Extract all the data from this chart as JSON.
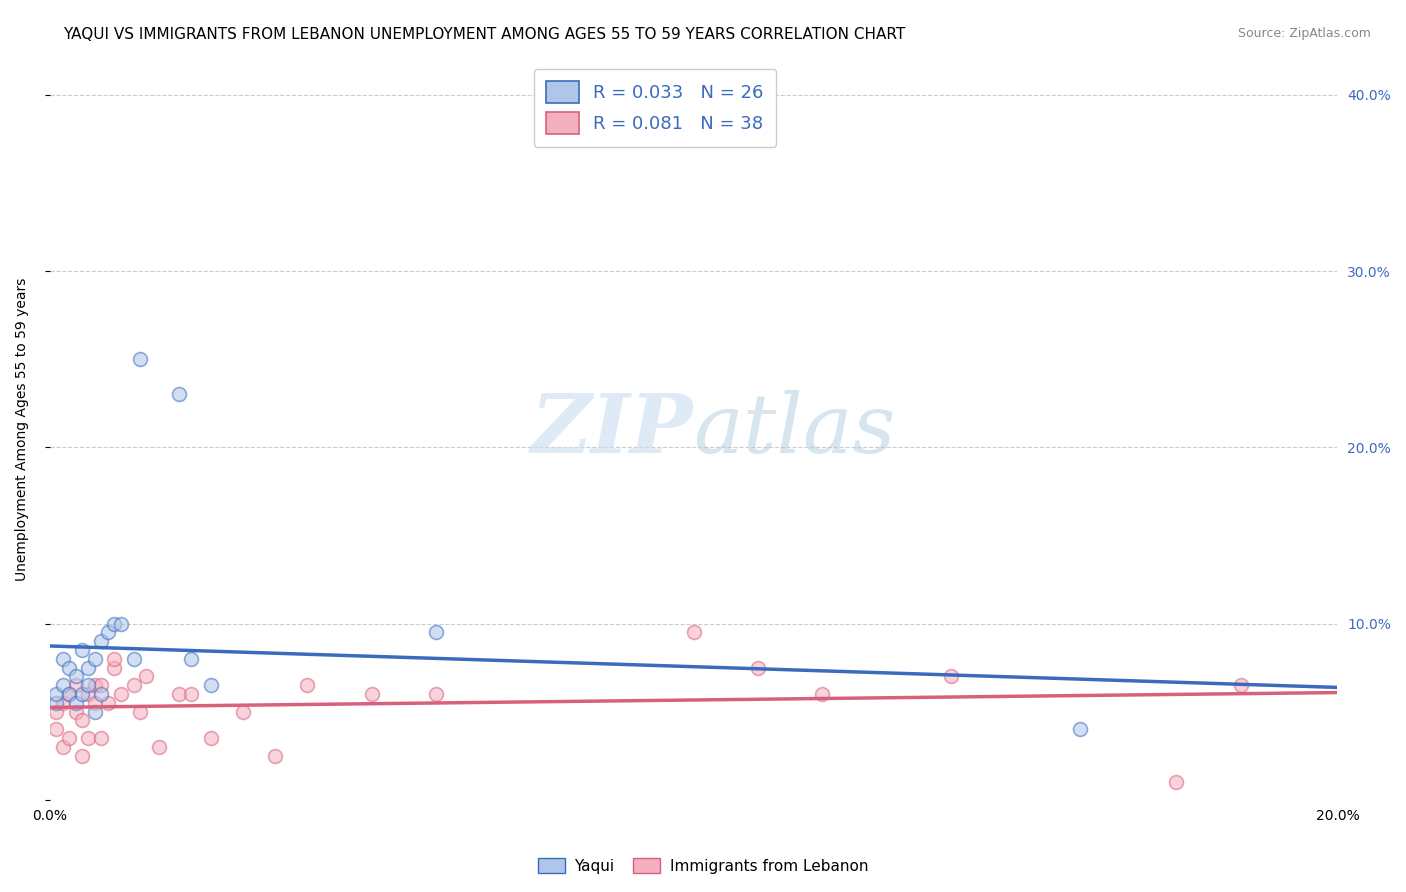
{
  "title": "YAQUI VS IMMIGRANTS FROM LEBANON UNEMPLOYMENT AMONG AGES 55 TO 59 YEARS CORRELATION CHART",
  "source": "Source: ZipAtlas.com",
  "ylabel": "Unemployment Among Ages 55 to 59 years",
  "xlim": [
    0.0,
    0.2
  ],
  "ylim": [
    0.0,
    0.42
  ],
  "xticks": [
    0.0,
    0.02,
    0.04,
    0.06,
    0.08,
    0.1,
    0.12,
    0.14,
    0.16,
    0.18,
    0.2
  ],
  "yticks_right": [
    0.0,
    0.1,
    0.2,
    0.3,
    0.4
  ],
  "yticklabels_right": [
    "",
    "10.0%",
    "20.0%",
    "30.0%",
    "40.0%"
  ],
  "legend1_label": "R = 0.033   N = 26",
  "legend2_label": "R = 0.081   N = 38",
  "legend1_fill": "#aec6e8",
  "legend2_fill": "#f4afc0",
  "trendline1_color": "#3a6bbf",
  "trendline2_color": "#d9607a",
  "watermark_zip": "ZIP",
  "watermark_atlas": "atlas",
  "background_color": "#ffffff",
  "grid_color": "#cccccc",
  "title_fontsize": 11,
  "tick_fontsize": 10,
  "axis_label_fontsize": 10,
  "yaqui_x": [
    0.001,
    0.001,
    0.002,
    0.002,
    0.003,
    0.003,
    0.004,
    0.004,
    0.005,
    0.005,
    0.006,
    0.006,
    0.007,
    0.007,
    0.008,
    0.008,
    0.009,
    0.01,
    0.011,
    0.013,
    0.014,
    0.02,
    0.022,
    0.025,
    0.06,
    0.16
  ],
  "yaqui_y": [
    0.055,
    0.06,
    0.08,
    0.065,
    0.075,
    0.06,
    0.07,
    0.055,
    0.085,
    0.06,
    0.075,
    0.065,
    0.08,
    0.05,
    0.09,
    0.06,
    0.095,
    0.1,
    0.1,
    0.08,
    0.25,
    0.23,
    0.08,
    0.065,
    0.095,
    0.04
  ],
  "lebanon_x": [
    0.001,
    0.001,
    0.002,
    0.002,
    0.003,
    0.003,
    0.004,
    0.004,
    0.005,
    0.005,
    0.006,
    0.006,
    0.007,
    0.007,
    0.008,
    0.008,
    0.009,
    0.01,
    0.01,
    0.011,
    0.013,
    0.014,
    0.015,
    0.017,
    0.02,
    0.022,
    0.025,
    0.03,
    0.035,
    0.04,
    0.05,
    0.06,
    0.1,
    0.11,
    0.12,
    0.14,
    0.175,
    0.185
  ],
  "lebanon_y": [
    0.05,
    0.04,
    0.055,
    0.03,
    0.06,
    0.035,
    0.05,
    0.065,
    0.045,
    0.025,
    0.06,
    0.035,
    0.055,
    0.065,
    0.065,
    0.035,
    0.055,
    0.075,
    0.08,
    0.06,
    0.065,
    0.05,
    0.07,
    0.03,
    0.06,
    0.06,
    0.035,
    0.05,
    0.025,
    0.065,
    0.06,
    0.06,
    0.095,
    0.075,
    0.06,
    0.07,
    0.01,
    0.065
  ],
  "dot_size": 100,
  "dot_alpha": 0.55
}
